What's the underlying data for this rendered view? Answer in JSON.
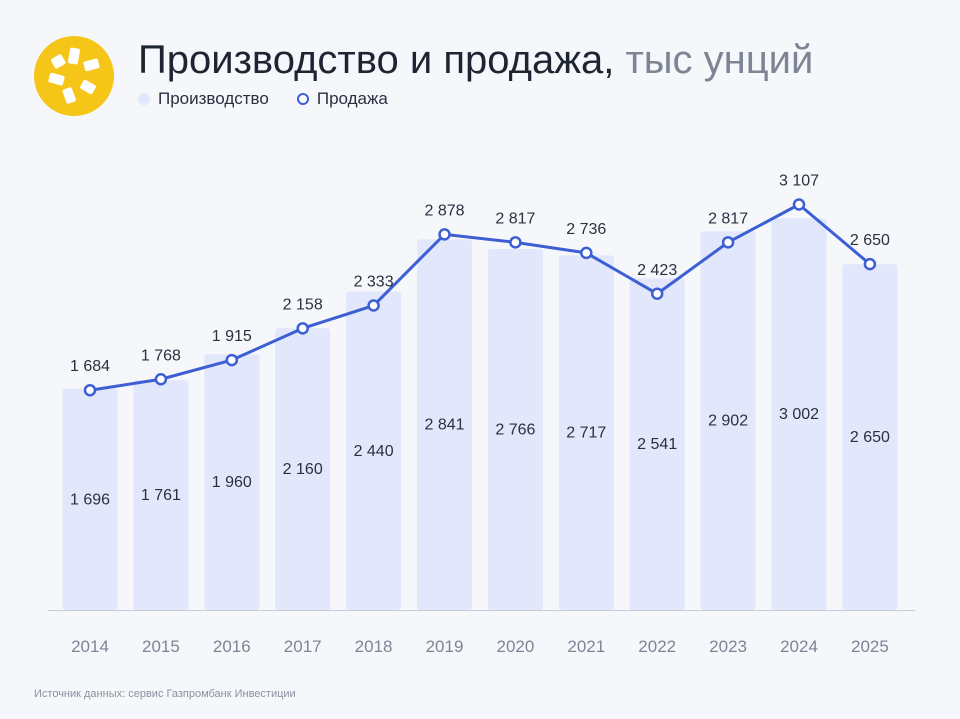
{
  "header": {
    "title": "Производство и продажа,",
    "unit": "тыс унций"
  },
  "legend": {
    "production": "Производство",
    "sales": "Продажа"
  },
  "source": "Источник данных: сервис Газпромбанк Инвестиции",
  "colors": {
    "bar": "#e3e7fb",
    "line": "#3d5fd4",
    "logo": "#f5c518",
    "axis_label": "#7d8595",
    "value_label": "#2b3040"
  },
  "chart_data": {
    "type": "bar",
    "categories": [
      "2014",
      "2015",
      "2016",
      "2017",
      "2018",
      "2019",
      "2020",
      "2021",
      "2022",
      "2023",
      "2024",
      "2025"
    ],
    "series": [
      {
        "name": "Производство",
        "type": "bar",
        "values": [
          1696,
          1761,
          1960,
          2160,
          2440,
          2841,
          2766,
          2717,
          2541,
          2902,
          3002,
          2650
        ],
        "labels": [
          "1 696",
          "1 761",
          "1 960",
          "2 160",
          "2 440",
          "2 841",
          "2 766",
          "2 717",
          "2 541",
          "2 902",
          "3 002",
          "2 650"
        ]
      },
      {
        "name": "Продажа",
        "type": "line",
        "values": [
          1684,
          1768,
          1915,
          2158,
          2333,
          2878,
          2817,
          2736,
          2423,
          2817,
          3107,
          2650
        ],
        "labels": [
          "1 684",
          "1 768",
          "1 915",
          "2 158",
          "2 333",
          "2 878",
          "2 817",
          "2 736",
          "2 423",
          "2 817",
          "3 107",
          "2 650"
        ]
      }
    ],
    "ylim": [
      0,
      3310
    ],
    "grid": false,
    "legend": "top-left"
  }
}
